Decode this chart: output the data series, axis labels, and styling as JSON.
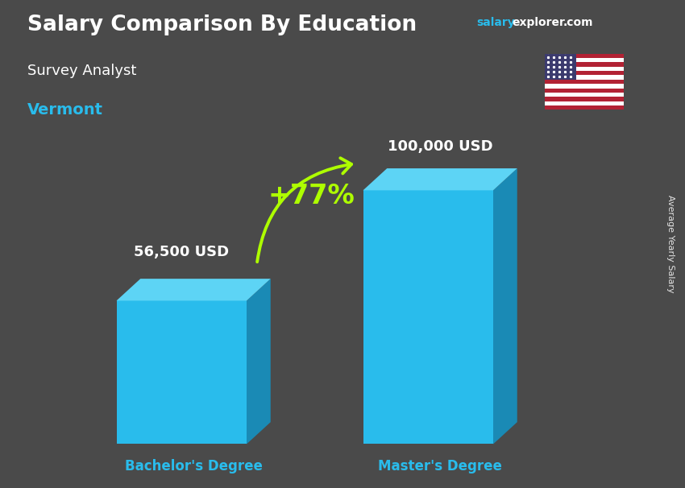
{
  "title": "Salary Comparison By Education",
  "subtitle": "Survey Analyst",
  "location": "Vermont",
  "categories": [
    "Bachelor's Degree",
    "Master's Degree"
  ],
  "values": [
    56500,
    100000
  ],
  "value_labels": [
    "56,500 USD",
    "100,000 USD"
  ],
  "pct_change": "+77%",
  "bar_color_face": "#29BCEC",
  "bar_color_side": "#1A8AB5",
  "bar_color_top": "#5DD4F5",
  "title_color": "#FFFFFF",
  "subtitle_color": "#FFFFFF",
  "location_color": "#29BCEC",
  "label_color": "#FFFFFF",
  "category_color": "#29BCEC",
  "pct_color": "#AEFF00",
  "arrow_color": "#AEFF00",
  "side_label": "Average Yearly Salary",
  "background_color": "#4a4a4a",
  "fig_width": 8.5,
  "fig_height": 6.06
}
